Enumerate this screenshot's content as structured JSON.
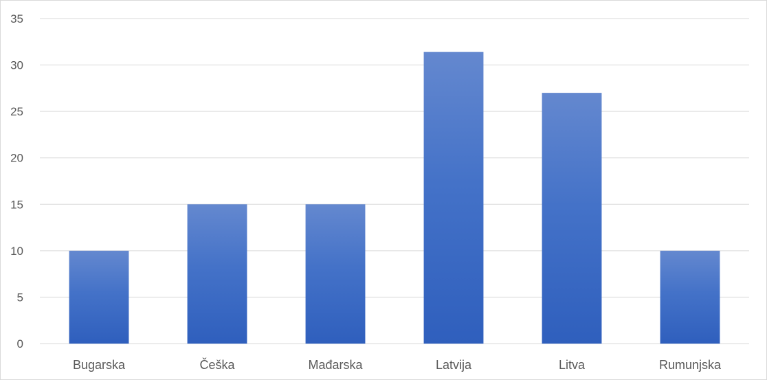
{
  "chart_data": {
    "type": "bar",
    "categories": [
      "Bugarska",
      "Češka",
      "Mađarska",
      "Latvija",
      "Litva",
      "Rumunjska"
    ],
    "values": [
      10,
      15,
      15,
      31.4,
      27,
      10
    ],
    "ylim": [
      0,
      35
    ],
    "yticks": [
      0,
      5,
      10,
      15,
      20,
      25,
      30,
      35
    ],
    "grid": true,
    "legend": "none",
    "colors": {
      "bar_top": "#6488cf",
      "bar_bottom": "#2f5fbd",
      "grid": "#d9d9d9",
      "text": "#595959",
      "border": "#d9d9d9"
    }
  }
}
